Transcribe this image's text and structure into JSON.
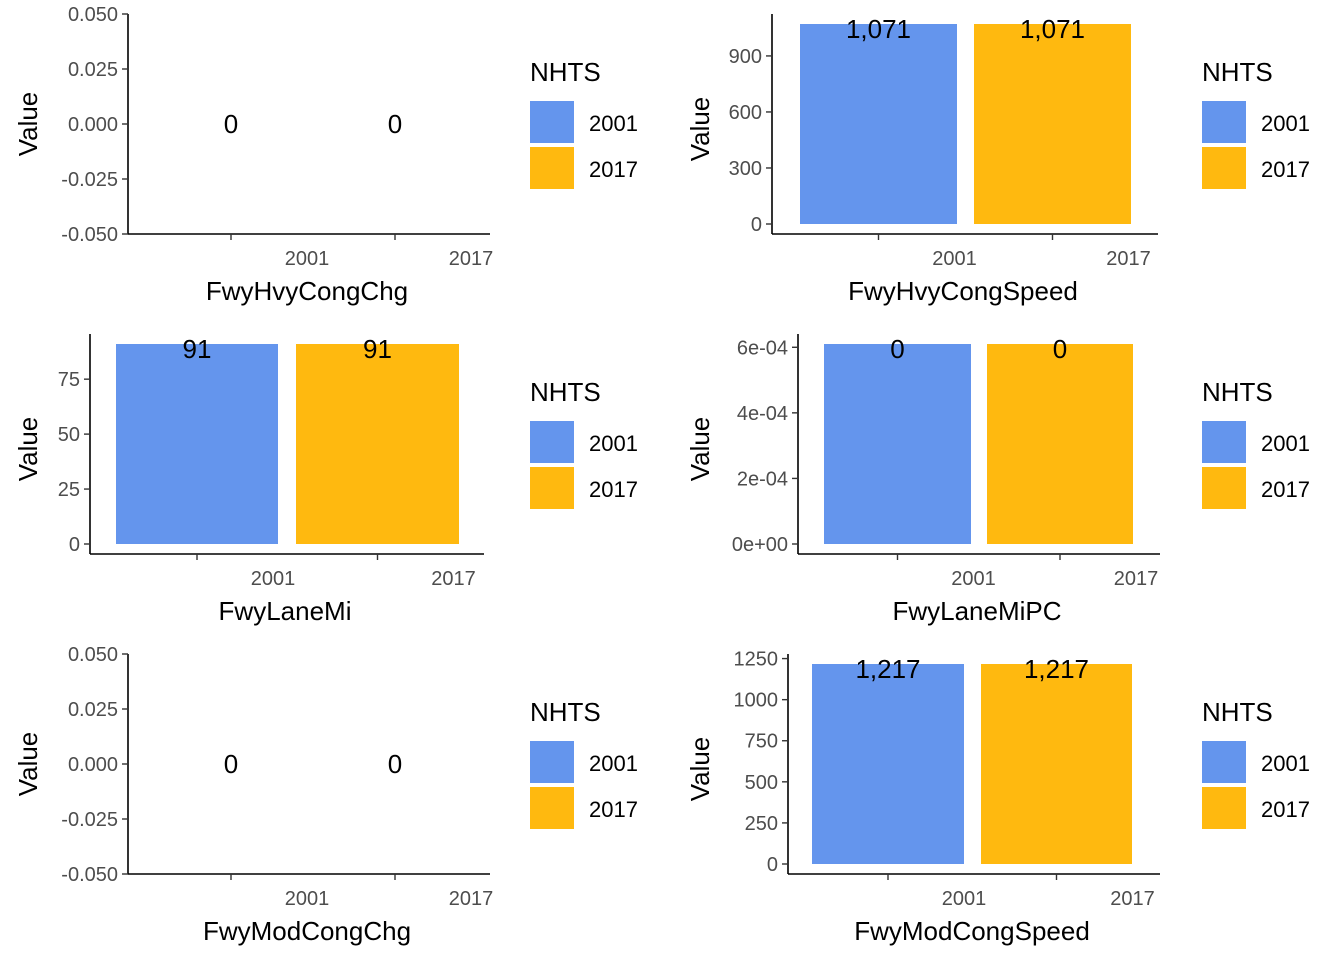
{
  "chart_data": [
    {
      "type": "bar",
      "xlabel": "FwyHvyCongChg",
      "ylabel": "Value",
      "ylim": [
        -0.05,
        0.05
      ],
      "yticks": [
        -0.05,
        -0.025,
        0,
        0.025,
        0.05
      ],
      "ytick_labels": [
        "-0.050",
        "-0.025",
        "0.000",
        "0.025",
        "0.050"
      ],
      "categories": [
        "2001",
        "2017"
      ],
      "values": [
        0,
        0
      ],
      "data_labels": [
        "0",
        "0"
      ],
      "colors": [
        "#6495ED",
        "#FFB90F"
      ],
      "legend": {
        "title": "NHTS",
        "entries": [
          "2001",
          "2017"
        ],
        "position": "right"
      },
      "grid": false
    },
    {
      "type": "bar",
      "xlabel": "FwyHvyCongSpeed",
      "ylabel": "Value",
      "ylim": [
        0,
        1071
      ],
      "yticks": [
        0,
        300,
        600,
        900
      ],
      "ytick_labels": [
        "0",
        "300",
        "600",
        "900"
      ],
      "categories": [
        "2001",
        "2017"
      ],
      "values": [
        1071,
        1071
      ],
      "data_labels": [
        "1,071",
        "1,071"
      ],
      "colors": [
        "#6495ED",
        "#FFB90F"
      ],
      "legend": {
        "title": "NHTS",
        "entries": [
          "2001",
          "2017"
        ],
        "position": "right"
      },
      "grid": false
    },
    {
      "type": "bar",
      "xlabel": "FwyLaneMi",
      "ylabel": "Value",
      "ylim": [
        0,
        91
      ],
      "yticks": [
        0,
        25,
        50,
        75
      ],
      "ytick_labels": [
        "0",
        "25",
        "50",
        "75"
      ],
      "categories": [
        "2001",
        "2017"
      ],
      "values": [
        91,
        91
      ],
      "data_labels": [
        "91",
        "91"
      ],
      "colors": [
        "#6495ED",
        "#FFB90F"
      ],
      "legend": {
        "title": "NHTS",
        "entries": [
          "2001",
          "2017"
        ],
        "position": "right"
      },
      "grid": false
    },
    {
      "type": "bar",
      "xlabel": "FwyLaneMiPC",
      "ylabel": "Value",
      "ylim": [
        0,
        0.00061
      ],
      "yticks": [
        0,
        0.0002,
        0.0004,
        0.0006
      ],
      "ytick_labels": [
        "0e+00",
        "2e-04",
        "4e-04",
        "6e-04"
      ],
      "categories": [
        "2001",
        "2017"
      ],
      "values": [
        0.00061,
        0.00061
      ],
      "data_labels": [
        "0",
        "0"
      ],
      "colors": [
        "#6495ED",
        "#FFB90F"
      ],
      "legend": {
        "title": "NHTS",
        "entries": [
          "2001",
          "2017"
        ],
        "position": "right"
      },
      "grid": false
    },
    {
      "type": "bar",
      "xlabel": "FwyModCongChg",
      "ylabel": "Value",
      "ylim": [
        -0.05,
        0.05
      ],
      "yticks": [
        -0.05,
        -0.025,
        0,
        0.025,
        0.05
      ],
      "ytick_labels": [
        "-0.050",
        "-0.025",
        "0.000",
        "0.025",
        "0.050"
      ],
      "categories": [
        "2001",
        "2017"
      ],
      "values": [
        0,
        0
      ],
      "data_labels": [
        "0",
        "0"
      ],
      "colors": [
        "#6495ED",
        "#FFB90F"
      ],
      "legend": {
        "title": "NHTS",
        "entries": [
          "2001",
          "2017"
        ],
        "position": "right"
      },
      "grid": false
    },
    {
      "type": "bar",
      "xlabel": "FwyModCongSpeed",
      "ylabel": "Value",
      "ylim": [
        0,
        1217
      ],
      "yticks": [
        0,
        250,
        500,
        750,
        1000,
        1250
      ],
      "ytick_labels": [
        "0",
        "250",
        "500",
        "750",
        "1000",
        "1250"
      ],
      "categories": [
        "2001",
        "2017"
      ],
      "values": [
        1217,
        1217
      ],
      "data_labels": [
        "1,217",
        "1,217"
      ],
      "colors": [
        "#6495ED",
        "#FFB90F"
      ],
      "legend": {
        "title": "NHTS",
        "entries": [
          "2001",
          "2017"
        ],
        "position": "right"
      },
      "grid": false
    }
  ]
}
